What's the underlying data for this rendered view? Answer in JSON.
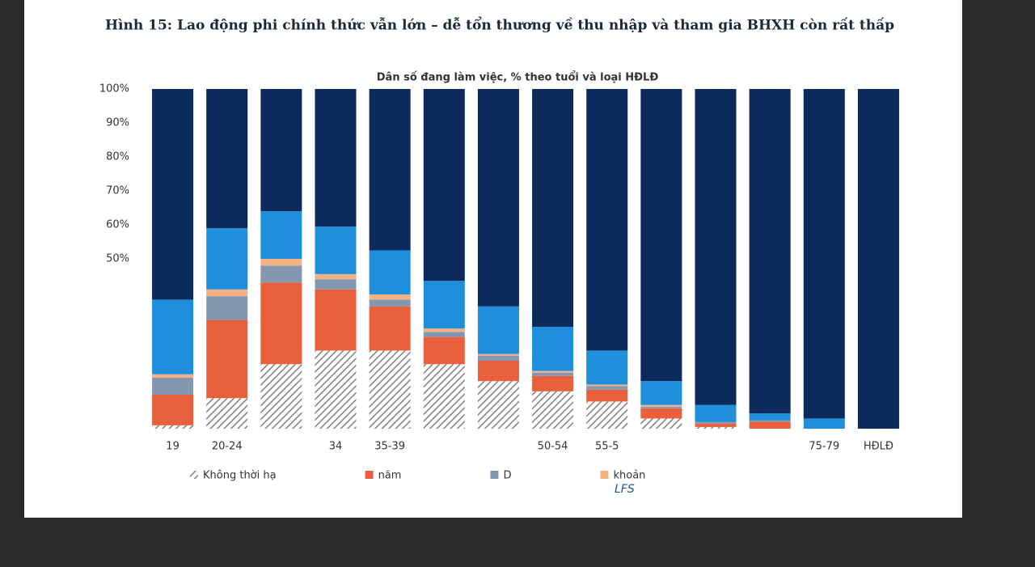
{
  "chart_data": {
    "type": "stacked_bar",
    "title": "Hình 15: Lao động phi chính thức vẫn lớn – dễ tổn thương về thu nhập và tham gia BHXH còn rất thấp",
    "subtitle": "Dân số đang làm việc, % theo tuổi và loại HĐLĐ",
    "source": "LFS",
    "categories": [
      "19",
      "20-24",
      null,
      "34",
      "35-39",
      null,
      null,
      "50-54",
      "55-5",
      null,
      null,
      null,
      "75-79",
      "HĐLĐ"
    ],
    "series": [
      {
        "name": "Không thời hạ",
        "color": "#7f7f7f",
        "hatch": true,
        "values": [
          1,
          9,
          19,
          23,
          23,
          19,
          14,
          11,
          8,
          3,
          0.5,
          0,
          0,
          0
        ]
      },
      {
        "name": "năm",
        "color": "#e8603c",
        "values": [
          9,
          23,
          24,
          18,
          13,
          8,
          6,
          4.5,
          3.5,
          3,
          1,
          2,
          0,
          0
        ]
      },
      {
        "name": "D",
        "color": "#8497b0",
        "values": [
          5,
          7,
          5,
          3,
          2,
          1.5,
          1.5,
          1,
          1,
          0.5,
          0.5,
          0.5,
          0,
          0
        ]
      },
      {
        "name": "khoản",
        "color": "#f4b183",
        "values": [
          1,
          2,
          2,
          1.5,
          1.5,
          1,
          0.5,
          0.5,
          0.5,
          0.5,
          0,
          0,
          0,
          0
        ]
      },
      {
        "color": "#1f8fdc",
        "values": [
          22,
          18,
          14,
          14,
          13,
          14,
          14,
          13,
          10,
          7,
          5,
          2,
          3,
          0
        ]
      },
      {
        "color": "#0d2a5c",
        "values": [
          62,
          41,
          36,
          40.5,
          47.5,
          56.5,
          64,
          70,
          77,
          86,
          93,
          95.5,
          97,
          100
        ]
      }
    ],
    "ylim": [
      0,
      100
    ],
    "yticks": [
      {
        "value": 50,
        "label": "50%"
      },
      {
        "value": 60,
        "label": "60%"
      },
      {
        "value": 70,
        "label": "70%"
      },
      {
        "value": 80,
        "label": "80%"
      },
      {
        "value": 90,
        "label": "90%"
      },
      {
        "value": 100,
        "label": "100%"
      }
    ]
  }
}
